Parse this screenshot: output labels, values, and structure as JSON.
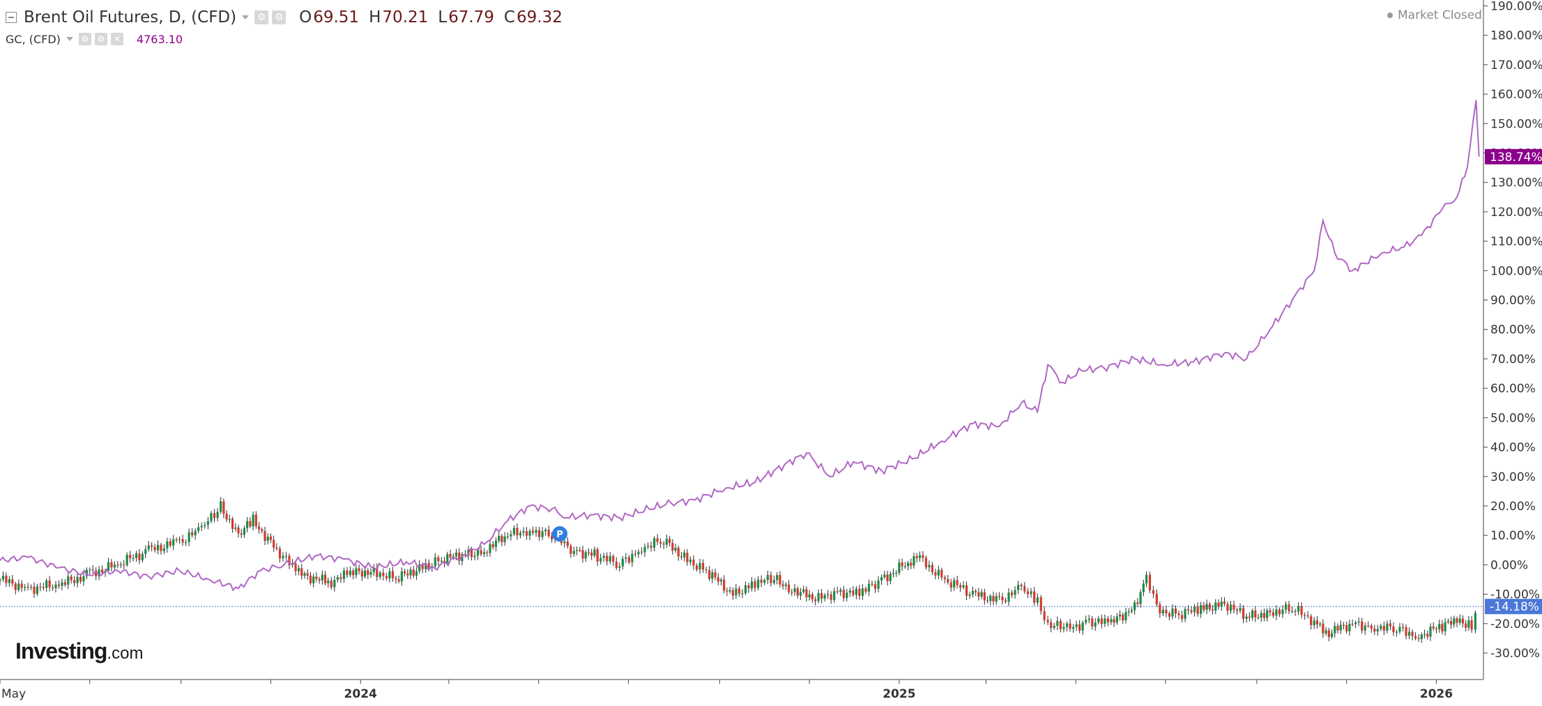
{
  "legend": {
    "main_title": "Brent Oil Futures, D, (CFD)",
    "open_label": "O",
    "open_value": "69.51",
    "high_label": "H",
    "high_value": "70.21",
    "low_label": "L",
    "low_value": "67.79",
    "close_label": "C",
    "close_value": "69.32",
    "sub_title": "GC, (CFD)",
    "sub_value": "4763.10"
  },
  "status": {
    "market_closed": "Market Closed"
  },
  "logo": {
    "bold": "Investing",
    "suffix": ".com"
  },
  "colors": {
    "gold_line": "#b067c4",
    "gold_badge": "#8b008b",
    "oil_badge": "#4b78d8",
    "candle_up": "#1e8a47",
    "candle_down": "#d33a2e",
    "last_price_line": "#4b78d8"
  },
  "icons": [
    "collapse-icon",
    "settings-icon",
    "close-icon",
    "chevron-down-icon"
  ],
  "chart_data": {
    "type": "line",
    "scale": "percent change",
    "y_ticks": [
      "190.00%",
      "180.00%",
      "170.00%",
      "160.00%",
      "150.00%",
      "140.00%",
      "130.00%",
      "120.00%",
      "110.00%",
      "100.00%",
      "90.00%",
      "80.00%",
      "70.00%",
      "60.00%",
      "50.00%",
      "40.00%",
      "30.00%",
      "20.00%",
      "10.00%",
      "0.00%",
      "-10.00%",
      "-20.00%",
      "-30.00%"
    ],
    "ylim": [
      -39,
      192
    ],
    "x_tick_labels": [
      "May",
      "2024",
      "2025",
      "2026"
    ],
    "x_tick_dates": [
      "2023-05-01",
      "2024-01-01",
      "2025-01-01",
      "2026-01-01"
    ],
    "xlim": [
      "2023-05-01",
      "2026-02-02"
    ],
    "series": [
      {
        "name": "GC, (CFD)",
        "style": "line",
        "last_label": "138.74%",
        "x": [
          "2023-05-01",
          "2023-05-20",
          "2023-06-10",
          "2023-07-01",
          "2023-07-20",
          "2023-08-10",
          "2023-08-31",
          "2023-09-20",
          "2023-10-10",
          "2023-10-25",
          "2023-11-10",
          "2023-12-01",
          "2023-12-20",
          "2024-01-10",
          "2024-02-01",
          "2024-02-20",
          "2024-03-10",
          "2024-03-25",
          "2024-04-10",
          "2024-04-25",
          "2024-05-10",
          "2024-05-20",
          "2024-06-05",
          "2024-06-25",
          "2024-07-15",
          "2024-07-30",
          "2024-08-15",
          "2024-09-05",
          "2024-09-25",
          "2024-10-15",
          "2024-10-30",
          "2024-11-15",
          "2024-12-01",
          "2024-12-20",
          "2025-01-10",
          "2025-01-30",
          "2025-02-20",
          "2025-03-10",
          "2025-03-25",
          "2025-04-05",
          "2025-04-12",
          "2025-04-22",
          "2025-05-05",
          "2025-05-20",
          "2025-06-10",
          "2025-06-30",
          "2025-07-20",
          "2025-08-10",
          "2025-08-25",
          "2025-09-10",
          "2025-09-25",
          "2025-10-10",
          "2025-10-16",
          "2025-10-24",
          "2025-11-05",
          "2025-11-25",
          "2025-12-10",
          "2025-12-22",
          "2026-01-05",
          "2026-01-15",
          "2026-01-22",
          "2026-01-28",
          "2026-01-30"
        ],
        "y": [
          1.5,
          2.5,
          -1.0,
          -3.5,
          -2.0,
          -4.0,
          -2.0,
          -5.0,
          -8.0,
          -2.0,
          0.0,
          3.0,
          2.0,
          -1.0,
          1.0,
          -1.0,
          3.0,
          7.0,
          15.0,
          20.0,
          19.0,
          16.0,
          17.0,
          16.0,
          19.0,
          21.0,
          22.0,
          26.0,
          28.0,
          34.0,
          38.0,
          30.0,
          35.0,
          32.0,
          36.0,
          42.0,
          48.0,
          47.0,
          55.0,
          52.0,
          68.0,
          62.0,
          66.0,
          67.0,
          70.0,
          68.0,
          69.0,
          72.0,
          70.0,
          80.0,
          90.0,
          100.0,
          117.0,
          106.0,
          100.0,
          106.0,
          108.0,
          112.0,
          121.0,
          125.0,
          135.0,
          158.0,
          138.74
        ]
      },
      {
        "name": "Brent Oil Futures, D, (CFD)",
        "style": "candlestick",
        "last_label": "-14.18%",
        "x": [
          "2023-05-01",
          "2023-05-20",
          "2023-06-10",
          "2023-07-01",
          "2023-07-20",
          "2023-08-10",
          "2023-08-31",
          "2023-09-15",
          "2023-09-28",
          "2023-10-10",
          "2023-10-20",
          "2023-11-05",
          "2023-11-20",
          "2023-12-10",
          "2023-12-25",
          "2024-01-10",
          "2024-01-25",
          "2024-02-10",
          "2024-02-25",
          "2024-03-10",
          "2024-03-25",
          "2024-04-10",
          "2024-04-25",
          "2024-05-10",
          "2024-05-25",
          "2024-06-10",
          "2024-06-25",
          "2024-07-10",
          "2024-07-25",
          "2024-08-10",
          "2024-08-25",
          "2024-09-10",
          "2024-09-25",
          "2024-10-08",
          "2024-10-20",
          "2024-11-05",
          "2024-11-20",
          "2024-12-05",
          "2024-12-20",
          "2025-01-05",
          "2025-01-15",
          "2025-02-01",
          "2025-02-20",
          "2025-03-10",
          "2025-03-25",
          "2025-04-05",
          "2025-04-12",
          "2025-04-25",
          "2025-05-10",
          "2025-05-25",
          "2025-06-10",
          "2025-06-18",
          "2025-06-25",
          "2025-07-10",
          "2025-07-25",
          "2025-08-10",
          "2025-08-25",
          "2025-09-10",
          "2025-09-25",
          "2025-10-10",
          "2025-10-20",
          "2025-11-05",
          "2025-11-20",
          "2025-12-05",
          "2025-12-20",
          "2026-01-05",
          "2026-01-15",
          "2026-01-25",
          "2026-01-30"
        ],
        "y": [
          -5,
          -8,
          -7,
          -3,
          0,
          5,
          8,
          12,
          20,
          10,
          15,
          5,
          -3,
          -6,
          -3,
          -2,
          -5,
          -1,
          2,
          3,
          5,
          10,
          12,
          10,
          5,
          3,
          0,
          6,
          8,
          2,
          -3,
          -10,
          -6,
          -5,
          -8,
          -12,
          -9,
          -10,
          -5,
          0,
          2,
          -5,
          -10,
          -12,
          -8,
          -13,
          -20,
          -22,
          -19,
          -20,
          -14,
          -4,
          -15,
          -17,
          -15,
          -13,
          -18,
          -16,
          -15,
          -19,
          -23,
          -20,
          -21,
          -22,
          -24,
          -21,
          -19,
          -20,
          -14.18
        ]
      }
    ]
  }
}
